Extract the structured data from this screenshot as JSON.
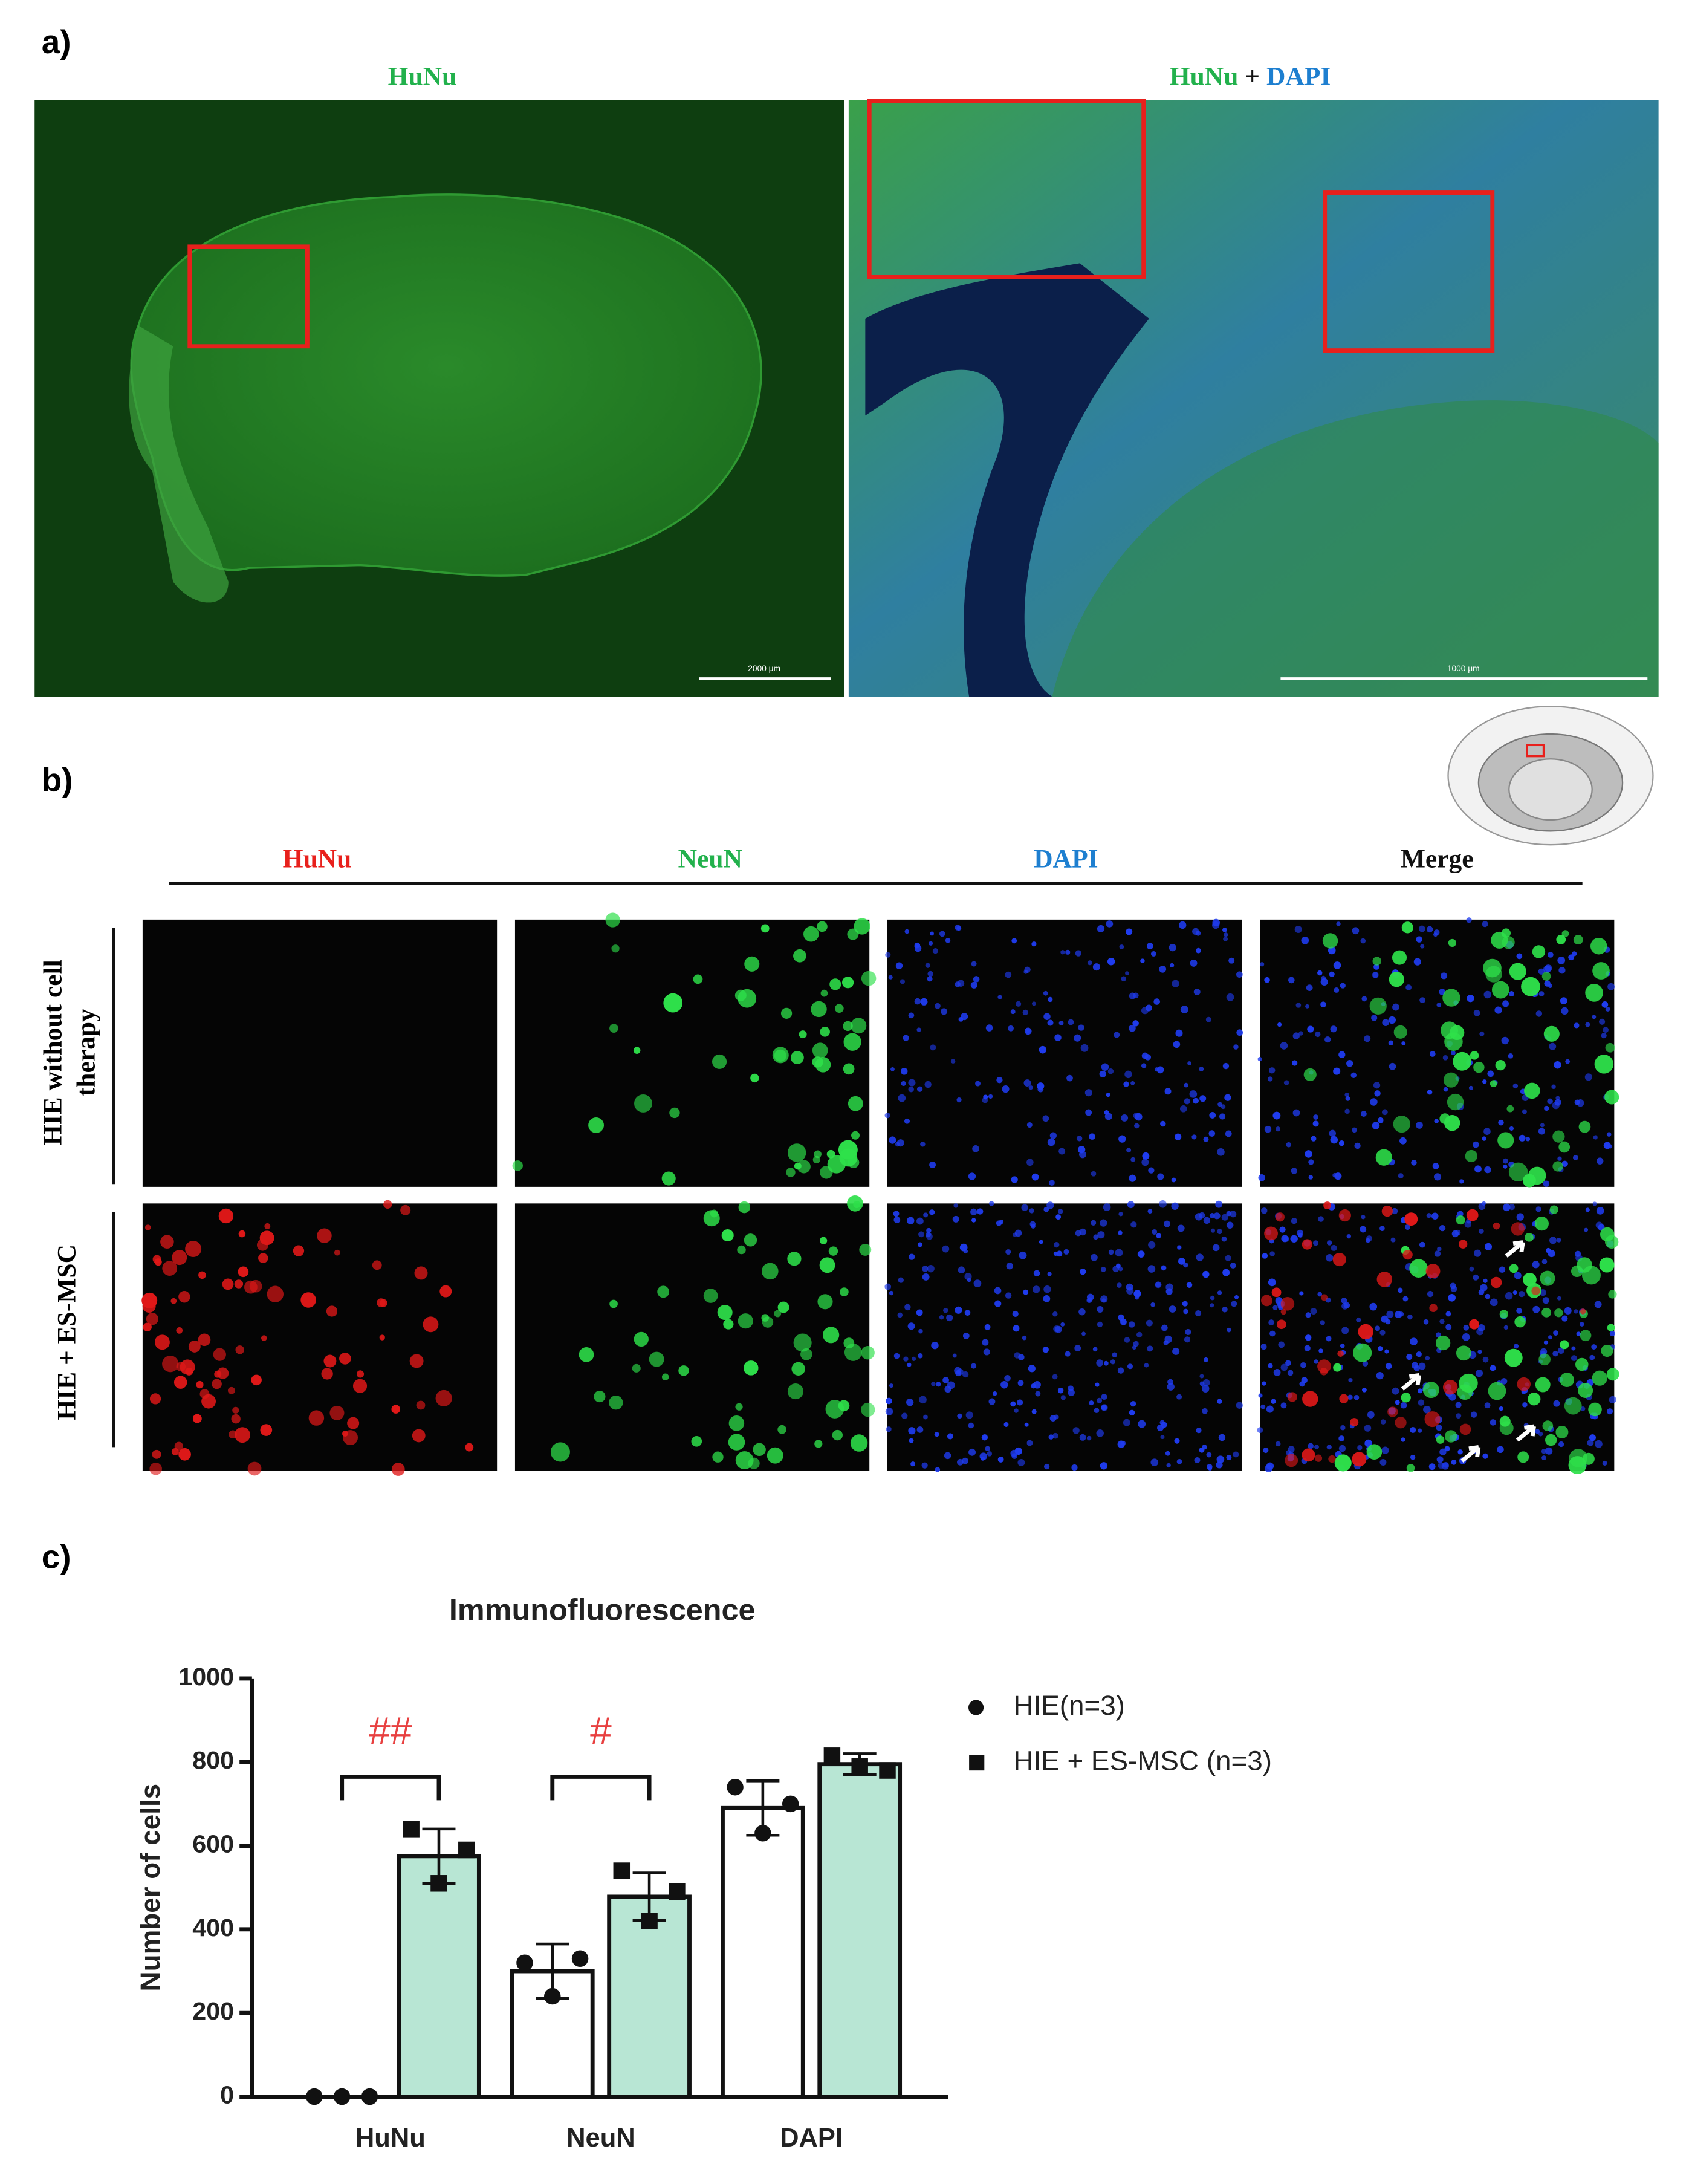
{
  "panel_a": {
    "label": "a)",
    "left_title": "HuNu",
    "right_title": [
      "HuNu",
      "+",
      "DAPI"
    ],
    "scale_bars": [
      "2000 μm",
      "1000 μm"
    ]
  },
  "panel_b": {
    "label": "b)",
    "columns": [
      "HuNu",
      "NeuN",
      "DAPI",
      "Merge"
    ],
    "rows": [
      [
        "HIE without cell",
        "therapy"
      ],
      [
        "HIE + ES-MSC"
      ]
    ]
  },
  "panel_c": {
    "label": "c)"
  },
  "chart_data": {
    "type": "bar",
    "title": "Immunofluorescence",
    "y_label": "Number of cells",
    "categories": [
      "HuNu",
      "NeuN",
      "DAPI"
    ],
    "series": [
      {
        "name": "HIE(n=3)",
        "color": "#ffffff",
        "marker": "circle",
        "values": [
          0,
          300,
          690
        ],
        "errors": [
          0,
          65,
          65
        ],
        "points": [
          [
            0,
            0,
            0
          ],
          [
            320,
            240,
            330
          ],
          [
            740,
            630,
            700
          ]
        ]
      },
      {
        "name": "HIE + ES-MSC (n=3)",
        "color": "#b8e6d4",
        "marker": "square",
        "values": [
          575,
          478,
          795
        ],
        "errors": [
          65,
          57,
          25
        ],
        "points": [
          [
            640,
            510,
            590
          ],
          [
            540,
            420,
            490
          ],
          [
            815,
            790,
            780
          ]
        ]
      }
    ],
    "significance": [
      "##",
      "#",
      null
    ],
    "ylim": [
      0,
      1000
    ],
    "yticks": [
      0,
      200,
      400,
      600,
      800,
      1000
    ]
  }
}
